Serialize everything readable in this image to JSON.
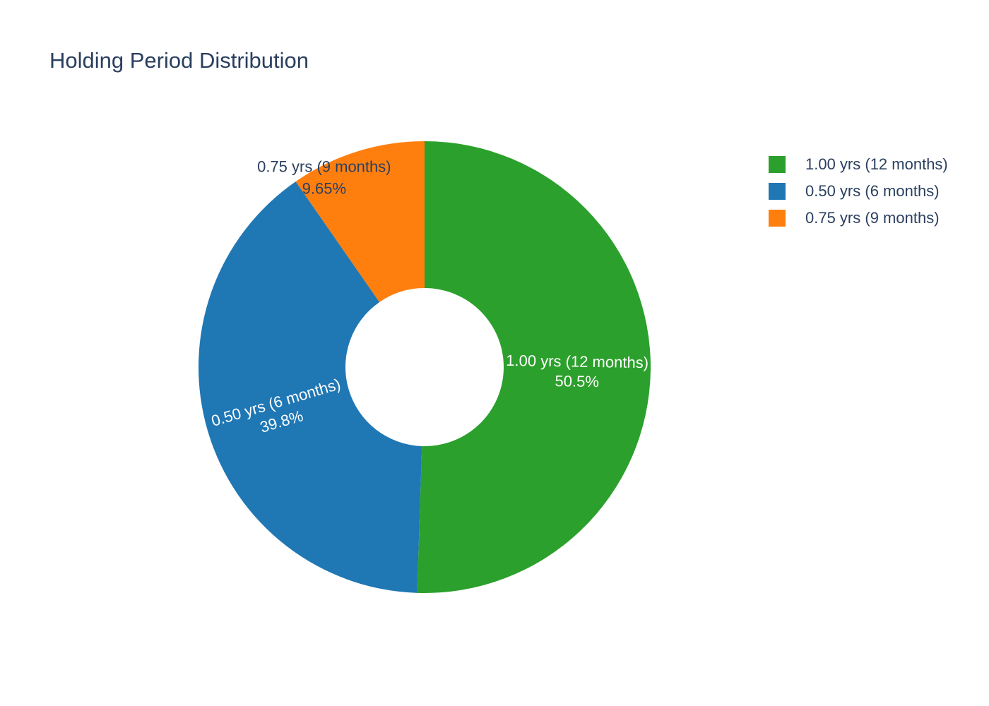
{
  "chart_data": {
    "type": "pie",
    "title": "Holding Period Distribution",
    "hole": 0.35,
    "sort": "descending",
    "direction": "clockwise",
    "legend_placement": "top-right",
    "slices": [
      {
        "label": "1.00 yrs (12 months)",
        "value": 50.5,
        "percent_text": "50.5%",
        "color": "#2ca02c",
        "label_position": "inside"
      },
      {
        "label": "0.50 yrs (6 months)",
        "value": 39.8,
        "percent_text": "39.8%",
        "color": "#1f77b4",
        "label_position": "inside"
      },
      {
        "label": "0.75 yrs (9 months)",
        "value": 9.65,
        "percent_text": "9.65%",
        "color": "#ff7f0e",
        "label_position": "outside"
      }
    ]
  }
}
